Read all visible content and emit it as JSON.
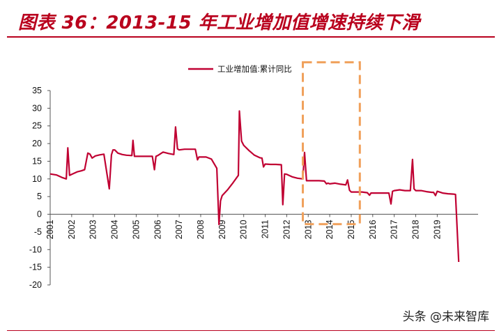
{
  "header": {
    "title": "图表 36：2013-15 年工业增加值增速持续下滑"
  },
  "watermark": "头条 @未来智库",
  "colors": {
    "series": "#c00032",
    "title": "#b9001d",
    "highlight_box": "#f0a05a"
  },
  "chart_data": {
    "type": "line",
    "title": "",
    "xlabel": "",
    "ylabel": "",
    "ylim": [
      -20,
      35
    ],
    "yticks": [
      35,
      30,
      25,
      20,
      15,
      10,
      5,
      0,
      -5,
      -10,
      -15,
      -20
    ],
    "xlim": [
      2001,
      2020.9
    ],
    "xtick_labels": [
      "2001",
      "2002",
      "2003",
      "2004",
      "2005",
      "2006",
      "2007",
      "2008",
      "2009",
      "2010",
      "2011",
      "2012",
      "2013",
      "2014",
      "2015",
      "2016",
      "2017",
      "2018",
      "2019"
    ],
    "legend": {
      "position": "top-center",
      "entries": [
        "工业增加值:累计同比"
      ]
    },
    "highlight_box": {
      "x_range": [
        2012.75,
        2015.4
      ],
      "y_range": [
        -2.8,
        43
      ]
    },
    "series": [
      {
        "name": "工业增加值:累计同比",
        "x": [
          2001.0,
          2001.3,
          2001.55,
          2001.75,
          2001.82,
          2001.9,
          2002.0,
          2002.25,
          2002.45,
          2002.6,
          2002.75,
          2002.85,
          2002.95,
          2003.1,
          2003.3,
          2003.5,
          2003.75,
          2003.85,
          2003.92,
          2004.0,
          2004.15,
          2004.35,
          2004.55,
          2004.8,
          2004.85,
          2004.92,
          2005.0,
          2005.25,
          2005.5,
          2005.75,
          2005.85,
          2005.92,
          2006.0,
          2006.25,
          2006.5,
          2006.75,
          2006.83,
          2006.92,
          2007.0,
          2007.25,
          2007.5,
          2007.75,
          2007.85,
          2007.92,
          2008.25,
          2008.5,
          2008.75,
          2008.85,
          2008.92,
          2009.0,
          2009.25,
          2009.5,
          2009.75,
          2009.8,
          2009.9,
          2010.0,
          2010.25,
          2010.5,
          2010.75,
          2010.85,
          2010.92,
          2011.0,
          2011.25,
          2011.5,
          2011.75,
          2011.82,
          2011.9,
          2012.0,
          2012.25,
          2012.5,
          2012.75,
          2012.83,
          2012.92,
          2013.0,
          2013.25,
          2013.5,
          2013.75,
          2013.85,
          2013.92,
          2014.0,
          2014.25,
          2014.5,
          2014.75,
          2014.83,
          2014.92,
          2015.0,
          2015.25,
          2015.5,
          2015.75,
          2015.85,
          2015.92,
          2016.0,
          2016.25,
          2016.5,
          2016.75,
          2016.85,
          2016.92,
          2017.0,
          2017.25,
          2017.5,
          2017.75,
          2017.85,
          2017.92,
          2018.0,
          2018.25,
          2018.5,
          2018.75,
          2018.83,
          2018.92,
          2019.0,
          2019.25,
          2019.5,
          2019.75,
          2019.85,
          2020.0
        ],
        "y": [
          11.4,
          11.1,
          10.4,
          10.0,
          18.8,
          11.0,
          11.3,
          12.0,
          12.3,
          12.6,
          17.3,
          17.0,
          15.9,
          16.5,
          16.8,
          17.0,
          7.2,
          16.8,
          18.2,
          18.2,
          17.3,
          16.9,
          16.7,
          16.6,
          20.9,
          16.4,
          16.4,
          16.4,
          16.4,
          16.4,
          12.6,
          16.4,
          16.6,
          17.6,
          17.2,
          16.9,
          24.7,
          18.5,
          18.2,
          18.4,
          18.4,
          18.4,
          15.4,
          16.2,
          16.2,
          15.6,
          13.0,
          -2.9,
          3.8,
          5.3,
          6.9,
          8.9,
          11.0,
          29.2,
          20.7,
          19.5,
          18.0,
          16.7,
          16.0,
          15.9,
          13.4,
          14.2,
          14.1,
          14.1,
          14.0,
          2.7,
          11.4,
          11.3,
          10.6,
          10.2,
          10.0,
          17.5,
          9.5,
          9.5,
          9.5,
          9.5,
          9.4,
          8.6,
          8.8,
          8.6,
          8.8,
          8.5,
          8.3,
          9.7,
          6.8,
          6.3,
          6.3,
          6.3,
          6.1,
          5.4,
          6.0,
          6.0,
          6.0,
          6.0,
          6.0,
          2.9,
          6.5,
          6.7,
          6.9,
          6.7,
          6.7,
          15.5,
          7.2,
          6.7,
          6.7,
          6.4,
          6.2,
          6.2,
          5.3,
          6.5,
          6.0,
          5.8,
          5.7,
          5.6,
          -13.5
        ]
      }
    ]
  }
}
